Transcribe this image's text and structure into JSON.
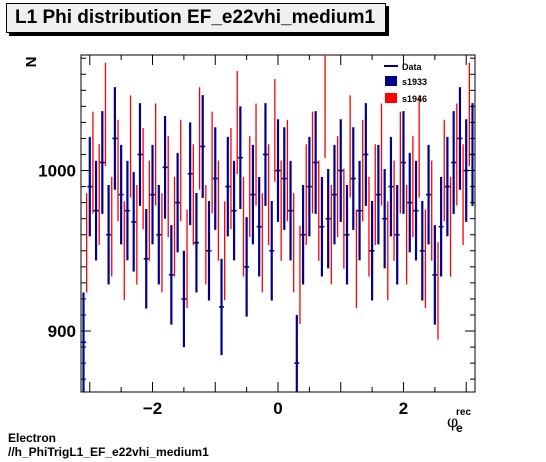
{
  "header": {
    "title": "L1 Phi distribution EF_e22vhi_medium1"
  },
  "footer": {
    "line1": "Electron",
    "line2": "//h_PhiTrigL1_EF_e22vhi_medium1"
  },
  "colors": {
    "s1933": "#00008b",
    "s1946": "#ff0000",
    "data": "#00008b"
  },
  "chart_data": {
    "type": "scatter",
    "title": "L1 Phi distribution EF_e22vhi_medium1",
    "ylabel": "N",
    "xlabel": "φ_e^rec",
    "xlim": [
      -3.14,
      3.14
    ],
    "ylim": [
      862,
      1072
    ],
    "xticks": [
      -2,
      0,
      2
    ],
    "yticks": [
      900,
      1000
    ],
    "legend": {
      "position": "top-right",
      "entries": [
        "Data",
        "s1933",
        "s1946"
      ]
    },
    "series": [
      {
        "name": "s1933",
        "x": [
          -3.1,
          -3.0,
          -2.9,
          -2.8,
          -2.7,
          -2.6,
          -2.5,
          -2.4,
          -2.3,
          -2.2,
          -2.1,
          -2.0,
          -1.9,
          -1.8,
          -1.7,
          -1.6,
          -1.5,
          -1.4,
          -1.3,
          -1.2,
          -1.1,
          -1.0,
          -0.9,
          -0.8,
          -0.7,
          -0.6,
          -0.5,
          -0.4,
          -0.3,
          -0.2,
          -0.1,
          0.0,
          0.1,
          0.2,
          0.3,
          0.4,
          0.5,
          0.6,
          0.7,
          0.8,
          0.9,
          1.0,
          1.1,
          1.2,
          1.3,
          1.4,
          1.5,
          1.6,
          1.7,
          1.8,
          1.9,
          2.0,
          2.1,
          2.2,
          2.3,
          2.4,
          2.5,
          2.6,
          2.7,
          2.8,
          2.9,
          3.0,
          3.1
        ],
        "values": [
          893,
          990,
          975,
          1005,
          960,
          1020,
          985,
          975,
          968,
          1010,
          945,
          985,
          960,
          1002,
          935,
          980,
          920,
          998,
          955,
          1015,
          950,
          995,
          915,
          990,
          975,
          1008,
          940,
          985,
          965,
          1010,
          950,
          1000,
          995,
          975,
          880,
          960,
          990,
          1005,
          965,
          970,
          985,
          1000,
          960,
          995,
          975,
          1010,
          950,
          985,
          970,
          990,
          960,
          1005,
          980,
          975,
          950,
          985,
          935,
          965,
          990,
          1005,
          1020,
          1000,
          1010
        ],
        "errors": [
          31,
          31,
          31,
          32,
          31,
          32,
          31,
          31,
          31,
          32,
          31,
          31,
          31,
          32,
          31,
          31,
          30,
          32,
          31,
          32,
          31,
          32,
          30,
          31,
          31,
          32,
          31,
          31,
          31,
          32,
          31,
          32,
          32,
          31,
          30,
          31,
          31,
          32,
          31,
          31,
          31,
          32,
          31,
          32,
          31,
          32,
          31,
          31,
          31,
          31,
          31,
          32,
          31,
          31,
          31,
          31,
          31,
          31,
          31,
          32,
          32,
          32,
          32
        ]
      },
      {
        "name": "s1946",
        "x": [
          -3.05,
          -2.95,
          -2.85,
          -2.75,
          -2.65,
          -2.55,
          -2.45,
          -2.35,
          -2.25,
          -2.15,
          -2.05,
          -1.95,
          -1.85,
          -1.75,
          -1.65,
          -1.55,
          -1.45,
          -1.35,
          -1.25,
          -1.15,
          -1.05,
          -0.95,
          -0.85,
          -0.75,
          -0.65,
          -0.55,
          -0.45,
          -0.35,
          -0.25,
          -0.15,
          -0.05,
          0.05,
          0.15,
          0.25,
          0.35,
          0.45,
          0.55,
          0.65,
          0.75,
          0.85,
          0.95,
          1.05,
          1.15,
          1.25,
          1.35,
          1.45,
          1.55,
          1.65,
          1.75,
          1.85,
          1.95,
          2.05,
          2.15,
          2.25,
          2.35,
          2.45,
          2.55,
          2.65,
          2.75,
          2.85,
          2.95,
          3.05
        ],
        "values": [
          955,
          1005,
          985,
          1035,
          965,
          1000,
          950,
          1015,
          960,
          995,
          975,
          1010,
          955,
          990,
          965,
          1000,
          945,
          985,
          1020,
          960,
          1005,
          975,
          950,
          995,
          1030,
          965,
          990,
          1010,
          955,
          985,
          1025,
          975,
          1000,
          955,
          935,
          985,
          1005,
          975,
          1040,
          960,
          990,
          970,
          1015,
          945,
          1000,
          965,
          985,
          1010,
          950,
          975,
          1005,
          960,
          990,
          1015,
          945,
          975,
          925,
          1000,
          965,
          1010,
          985,
          1035
        ]
      }
    ]
  }
}
